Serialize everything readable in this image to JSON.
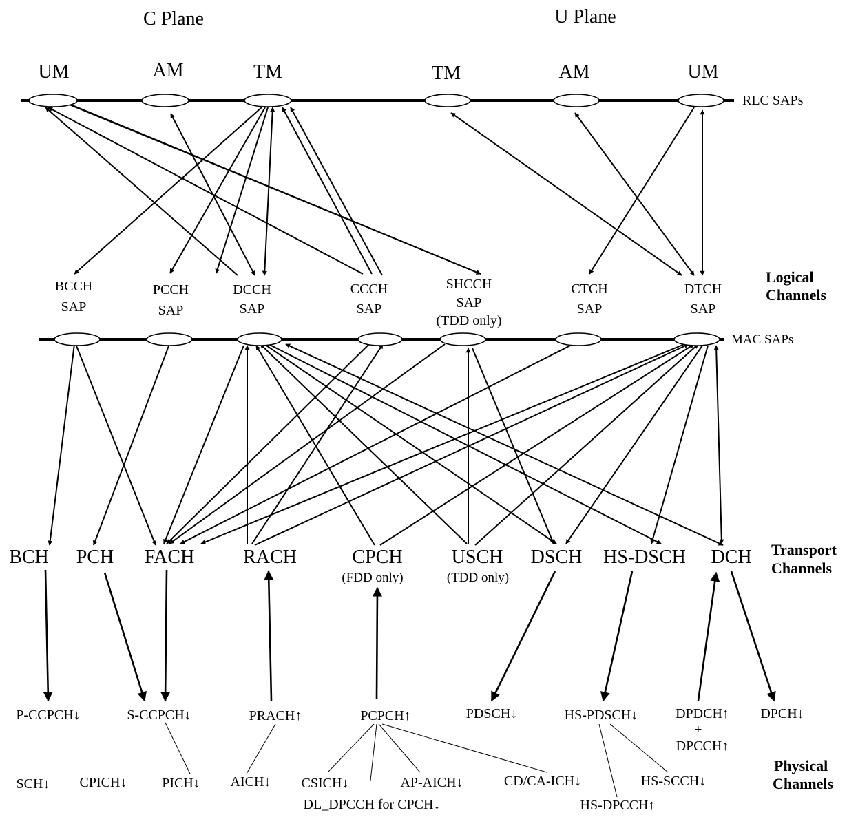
{
  "planes": {
    "c_plane": "C Plane",
    "u_plane": "U Plane"
  },
  "rlc_modes": [
    "UM",
    "AM",
    "TM",
    "TM",
    "AM",
    "UM"
  ],
  "rlc_saps_label": "RLC SAPs",
  "mac_saps_label": "MAC SAPs",
  "logical_channels": [
    {
      "line1": "BCCH",
      "line2": "SAP",
      "line3": ""
    },
    {
      "line1": "PCCH",
      "line2": "SAP",
      "line3": ""
    },
    {
      "line1": "DCCH",
      "line2": "SAP",
      "line3": ""
    },
    {
      "line1": "CCCH",
      "line2": "SAP",
      "line3": ""
    },
    {
      "line1": "SHCCH",
      "line2": "SAP",
      "line3": "(TDD only)"
    },
    {
      "line1": "CTCH",
      "line2": "SAP",
      "line3": ""
    },
    {
      "line1": "DTCH",
      "line2": "SAP",
      "line3": ""
    }
  ],
  "logical_title": {
    "line1": "Logical",
    "line2": "Channels"
  },
  "transport_channels": [
    {
      "name": "BCH",
      "note": ""
    },
    {
      "name": "PCH",
      "note": ""
    },
    {
      "name": "FACH",
      "note": ""
    },
    {
      "name": "RACH",
      "note": ""
    },
    {
      "name": "CPCH",
      "note": "(FDD only)"
    },
    {
      "name": "USCH",
      "note": "(TDD only)"
    },
    {
      "name": "DSCH",
      "note": ""
    },
    {
      "name": "HS-DSCH",
      "note": ""
    },
    {
      "name": "DCH",
      "note": ""
    }
  ],
  "transport_title": {
    "line1": "Transport",
    "line2": "Channels"
  },
  "physical_row1": [
    "P-CCPCH↓",
    "S-CCPCH↓",
    "PRACH↑",
    "PCPCH↑",
    "PDSCH↓",
    "HS-PDSCH↓",
    "DPDCH↑",
    "+",
    "DPCCH↑",
    "DPCH↓"
  ],
  "physical_row2": [
    "SCH↓",
    "CPICH↓",
    "PICH↓",
    "AICH↓",
    "CSICH↓",
    "AP-AICH↓",
    "CD/CA-ICH↓",
    "HS-SCCH↓",
    "DL_DPCCH for CPCH↓",
    "HS-DPCCH↑"
  ],
  "physical_title": {
    "line1": "Physical",
    "line2": "Channels"
  }
}
